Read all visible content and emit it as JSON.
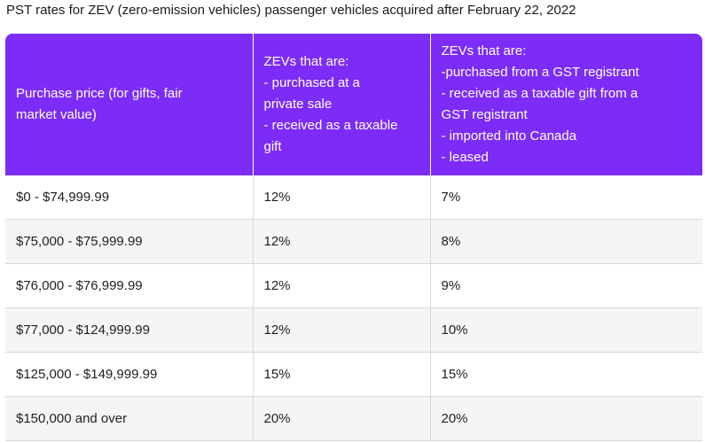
{
  "caption": "PST rates for ZEV (zero-emission vehicles) passenger vehicles acquired after February 22, 2022",
  "table": {
    "headers": [
      "Purchase price (for gifts, fair\nmarket value)",
      "ZEVs that are:\n- purchased at a\nprivate sale\n- received as a taxable\ngift",
      "ZEVs that are:\n-purchased from a GST registrant\n- received as a taxable gift from a\nGST registrant\n- imported into Canada\n- leased"
    ],
    "rows": [
      [
        "$0 - $74,999.99",
        "12%",
        "7%"
      ],
      [
        "$75,000 - $75,999.99",
        "12%",
        "8%"
      ],
      [
        "$76,000 - $76,999.99",
        "12%",
        "9%"
      ],
      [
        "$77,000 - $124,999.99",
        "12%",
        "10%"
      ],
      [
        "$125,000 - $149,999.99",
        "15%",
        "15%"
      ],
      [
        "$150,000 and over",
        "20%",
        "20%"
      ]
    ]
  },
  "colors": {
    "header_background": "#7c2cf6",
    "header_text": "#ffffff",
    "row_alt_background": "#f5f5f5",
    "border": "#d9d9d9"
  }
}
